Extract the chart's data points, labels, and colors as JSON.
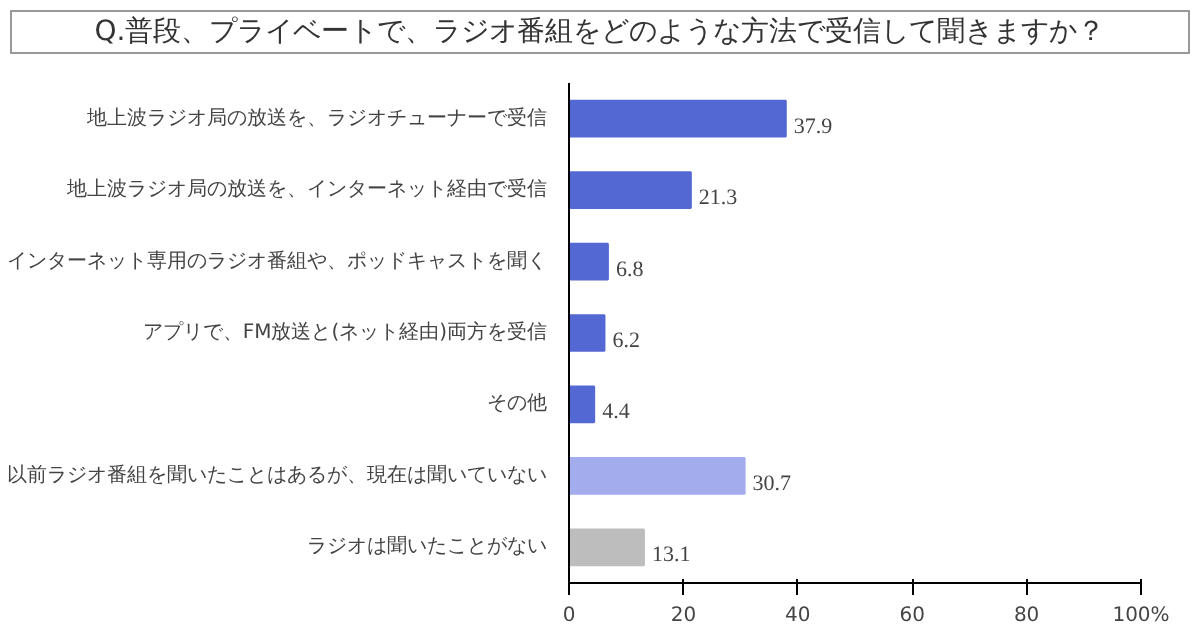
{
  "chart_data": {
    "type": "bar",
    "orientation": "horizontal",
    "title": "Q.普段、プライベートで、ラジオ番組をどのような方法で受信して聞きますか？",
    "categories": [
      "地上波ラジオ局の放送を、ラジオチューナーで受信",
      "地上波ラジオ局の放送を、インターネット経由で受信",
      "インターネット専用のラジオ番組や、ポッドキャストを聞く",
      "アプリで、FM放送と(ネット経由)両方を受信",
      "その他",
      "以前ラジオ番組を聞いたことはあるが、現在は聞いていない",
      "ラジオは聞いたことがない"
    ],
    "values": [
      37.9,
      21.3,
      6.8,
      6.2,
      4.4,
      30.7,
      13.1
    ],
    "colors": [
      "#5468d4",
      "#5468d4",
      "#5468d4",
      "#5468d4",
      "#5468d4",
      "#a3acec",
      "#bdbdbd"
    ],
    "data_labels": true,
    "xlim": [
      0,
      100
    ],
    "xticks": [
      0,
      20,
      40,
      60,
      80,
      {
        "value": 100,
        "label": "100%"
      }
    ],
    "grid": false
  }
}
